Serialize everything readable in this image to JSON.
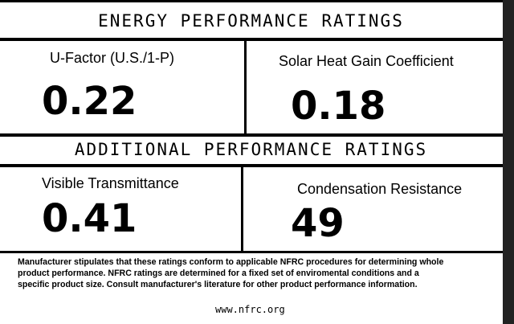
{
  "header": {
    "title": "ENERGY PERFORMANCE RATINGS"
  },
  "ratings": [
    {
      "label": "U-Factor (U.S./1-P)",
      "value": "0.22"
    },
    {
      "label": "Solar Heat Gain Coefficient",
      "value": "0.18"
    }
  ],
  "additional": {
    "title": "ADDITIONAL PERFORMANCE RATINGS",
    "ratings": [
      {
        "label": "Visible Transmittance",
        "value": "0.41"
      },
      {
        "label": "Condensation Resistance",
        "value": "49"
      }
    ]
  },
  "footer": {
    "lines": [
      "Manufacturer stipulates that these ratings conform to applicable NFRC procedures for determining whole",
      "product performance.  NFRC ratings are determined for a fixed set of enviromental conditions and a",
      "specific product size. Consult manufacturer's literature for other product performance information."
    ],
    "website": "www.nfrc.org"
  }
}
